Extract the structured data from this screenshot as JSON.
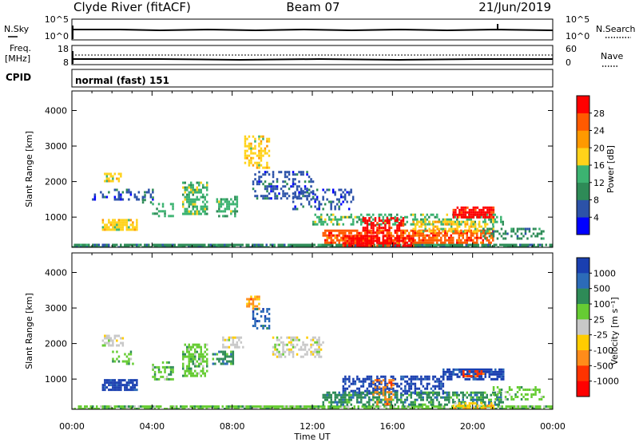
{
  "header": {
    "station": "Clyde River (fitACF)",
    "beam": "Beam 07",
    "date": "21/Jun/2019"
  },
  "status_panels": {
    "nsky_label": "N.Sky",
    "nsearch_label": "N.Search",
    "noise_left_ticks": [
      "10^5",
      "10^0"
    ],
    "noise_right_ticks": [
      "10^5",
      "10^0"
    ],
    "freq_label": "Freq.",
    "freq_unit": "[MHz]",
    "freq_ticks": [
      "18",
      "8"
    ],
    "nave_label": "Nave",
    "nave_ticks": [
      "60",
      "0"
    ],
    "cpid_label": "CPID",
    "cpid_mode": "normal (fast) 151"
  },
  "chart_data": [
    {
      "type": "heatmap",
      "parameter": "power",
      "ylabel": "Slant Range [km]",
      "ylim": [
        150,
        4550
      ],
      "yticks": [
        "1000",
        "2000",
        "3000",
        "4000"
      ],
      "colorbar": {
        "label": "Power [dB]",
        "ticks": [
          "4",
          "8",
          "12",
          "16",
          "20",
          "24",
          "28"
        ],
        "levels": [
          {
            "color": "#0000ff"
          },
          {
            "color": "#2c52a8"
          },
          {
            "color": "#2e8b57"
          },
          {
            "color": "#3cb371"
          },
          {
            "color": "#ffd21a"
          },
          {
            "color": "#ff9900"
          },
          {
            "color": "#ff5a00"
          },
          {
            "color": "#ff0000"
          }
        ]
      },
      "echo_regions": [
        {
          "t": [
            0.0,
            24.0
          ],
          "r": [
            180,
            250
          ],
          "v": 2,
          "d": 0.85
        },
        {
          "t": [
            1.5,
            3.2
          ],
          "r": [
            650,
            950
          ],
          "v": 4,
          "d": 0.75
        },
        {
          "t": [
            1.0,
            4.0
          ],
          "r": [
            1500,
            1800
          ],
          "v": 1,
          "d": 0.35
        },
        {
          "t": [
            1.6,
            2.4
          ],
          "r": [
            2000,
            2250
          ],
          "v": 4,
          "d": 0.6
        },
        {
          "t": [
            3.5,
            4.0
          ],
          "r": [
            1400,
            1650
          ],
          "v": 2,
          "d": 0.45
        },
        {
          "t": [
            4.0,
            5.0
          ],
          "r": [
            1000,
            1400
          ],
          "v": 3,
          "d": 0.4
        },
        {
          "t": [
            5.5,
            6.7
          ],
          "r": [
            1100,
            2000
          ],
          "v": 3,
          "d": 0.6
        },
        {
          "t": [
            7.2,
            8.2
          ],
          "r": [
            1000,
            1600
          ],
          "v": 3,
          "d": 0.55
        },
        {
          "t": [
            8.6,
            9.8
          ],
          "r": [
            2400,
            3300
          ],
          "v": 4,
          "d": 0.5
        },
        {
          "t": [
            9.0,
            12.0
          ],
          "r": [
            1500,
            2300
          ],
          "v": 1,
          "d": 0.35
        },
        {
          "t": [
            11.0,
            14.0
          ],
          "r": [
            1200,
            1800
          ],
          "v": 1,
          "d": 0.3
        },
        {
          "t": [
            12.0,
            21.5
          ],
          "r": [
            800,
            1100
          ],
          "v": 3,
          "d": 0.45
        },
        {
          "t": [
            12.5,
            21.0
          ],
          "r": [
            300,
            650
          ],
          "v": 6,
          "d": 0.7
        },
        {
          "t": [
            13.5,
            17.0
          ],
          "r": [
            200,
            500
          ],
          "v": 7,
          "d": 0.8
        },
        {
          "t": [
            14.5,
            16.5
          ],
          "r": [
            550,
            1000
          ],
          "v": 7,
          "d": 0.5
        },
        {
          "t": [
            19.0,
            21.0
          ],
          "r": [
            1000,
            1300
          ],
          "v": 7,
          "d": 0.8
        },
        {
          "t": [
            17.0,
            21.0
          ],
          "r": [
            600,
            900
          ],
          "v": 4,
          "d": 0.55
        },
        {
          "t": [
            20.5,
            23.5
          ],
          "r": [
            400,
            700
          ],
          "v": 2,
          "d": 0.35
        }
      ]
    },
    {
      "type": "heatmap",
      "parameter": "velocity",
      "xlabel": "Time UT",
      "xticks": [
        "00:00",
        "04:00",
        "08:00",
        "12:00",
        "16:00",
        "20:00",
        "00:00"
      ],
      "xlim_hours": [
        0,
        24
      ],
      "ylabel": "Slant Range [km]",
      "ylim": [
        150,
        4550
      ],
      "yticks": [
        "1000",
        "2000",
        "3000",
        "4000"
      ],
      "colorbar": {
        "label": "Velocity [m s⁻¹]",
        "ticks": [
          "1000",
          "500",
          "100",
          "25",
          "-25",
          "-100",
          "-500",
          "-1000"
        ],
        "levels": [
          {
            "color": "#1a3fb0"
          },
          {
            "color": "#2c6bb8"
          },
          {
            "color": "#2e8b57"
          },
          {
            "color": "#66cc33"
          },
          {
            "color": "#c8c8c8"
          },
          {
            "color": "#ffcc00"
          },
          {
            "color": "#ff8c1a"
          },
          {
            "color": "#ff3300"
          },
          {
            "color": "#ff0000"
          }
        ]
      },
      "echo_regions": [
        {
          "t": [
            0.0,
            24.0
          ],
          "r": [
            180,
            260
          ],
          "v": 3,
          "d": 0.8
        },
        {
          "t": [
            1.5,
            3.2
          ],
          "r": [
            700,
            1000
          ],
          "v": 0,
          "d": 0.8
        },
        {
          "t": [
            1.5,
            2.5
          ],
          "r": [
            1950,
            2250
          ],
          "v": 4,
          "d": 0.6
        },
        {
          "t": [
            2.0,
            3.0
          ],
          "r": [
            1400,
            1800
          ],
          "v": 3,
          "d": 0.4
        },
        {
          "t": [
            4.0,
            5.0
          ],
          "r": [
            1000,
            1500
          ],
          "v": 3,
          "d": 0.45
        },
        {
          "t": [
            5.5,
            6.7
          ],
          "r": [
            1100,
            2000
          ],
          "v": 3,
          "d": 0.6
        },
        {
          "t": [
            7.0,
            8.0
          ],
          "r": [
            1400,
            1800
          ],
          "v": 2,
          "d": 0.5
        },
        {
          "t": [
            7.5,
            8.5
          ],
          "r": [
            1900,
            2200
          ],
          "v": 4,
          "d": 0.55
        },
        {
          "t": [
            8.7,
            9.3
          ],
          "r": [
            3000,
            3350
          ],
          "v": 6,
          "d": 0.6
        },
        {
          "t": [
            9.0,
            9.8
          ],
          "r": [
            2400,
            3000
          ],
          "v": 1,
          "d": 0.4
        },
        {
          "t": [
            10.0,
            12.5
          ],
          "r": [
            1600,
            2200
          ],
          "v": 4,
          "d": 0.4
        },
        {
          "t": [
            13.5,
            18.5
          ],
          "r": [
            600,
            1100
          ],
          "v": 0,
          "d": 0.55
        },
        {
          "t": [
            12.5,
            21.5
          ],
          "r": [
            250,
            650
          ],
          "v": 2,
          "d": 0.6
        },
        {
          "t": [
            15.0,
            16.0
          ],
          "r": [
            300,
            1000
          ],
          "v": 6,
          "d": 0.35
        },
        {
          "t": [
            18.5,
            21.5
          ],
          "r": [
            1000,
            1300
          ],
          "v": 0,
          "d": 0.8
        },
        {
          "t": [
            19.5,
            20.5
          ],
          "r": [
            1050,
            1250
          ],
          "v": 7,
          "d": 0.4
        },
        {
          "t": [
            21.0,
            23.5
          ],
          "r": [
            400,
            800
          ],
          "v": 3,
          "d": 0.35
        },
        {
          "t": [
            19.0,
            21.0
          ],
          "r": [
            180,
            350
          ],
          "v": 5,
          "d": 0.5
        }
      ]
    }
  ]
}
